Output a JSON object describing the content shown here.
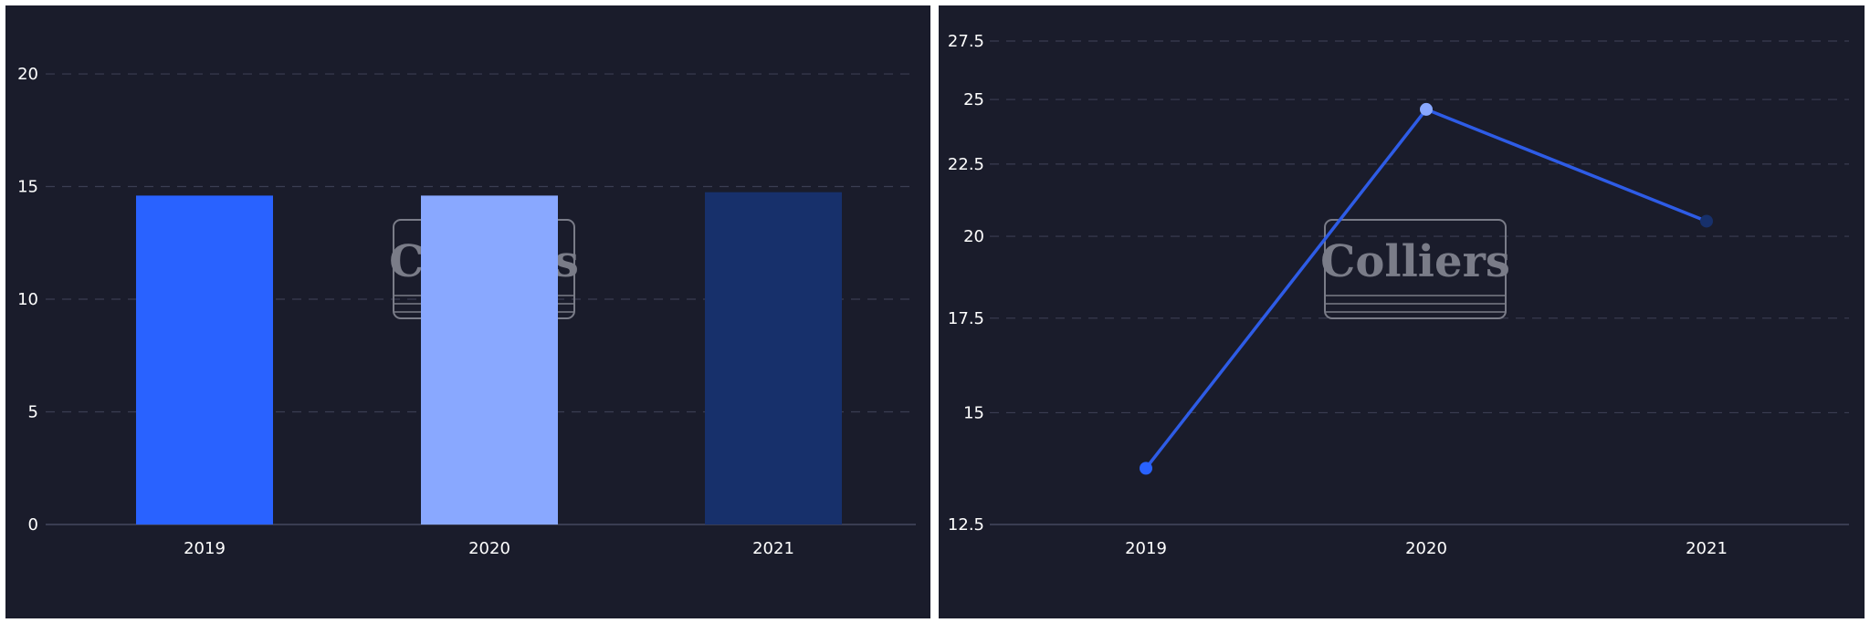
{
  "colors": {
    "background": "#1a1c2b",
    "grid": "#3a3d52",
    "text": "#ffffff",
    "watermark": "#7a7c88",
    "bar_2019": "#2962ff",
    "bar_2020": "#89a8ff",
    "bar_2021": "#17306b",
    "line": "#2e5ce6"
  },
  "watermark": {
    "text": "Colliers"
  },
  "chart_data": [
    {
      "type": "bar",
      "categories": [
        "2019",
        "2020",
        "2021"
      ],
      "values": [
        14.6,
        14.6,
        14.75
      ],
      "ylim": [
        0,
        21.5
      ],
      "yticks": [
        "0",
        "5",
        "10",
        "15",
        "20"
      ],
      "grid": true,
      "legend": "none"
    },
    {
      "type": "line",
      "categories": [
        "2019",
        "2020",
        "2021"
      ],
      "values": [
        13.7,
        24.6,
        20.5
      ],
      "ylim": [
        12.5,
        28.5
      ],
      "yticks": [
        "12.5",
        "15",
        "17.5",
        "20",
        "22.5",
        "25",
        "27.5"
      ],
      "scale": "log",
      "grid": true,
      "legend": "none"
    }
  ]
}
